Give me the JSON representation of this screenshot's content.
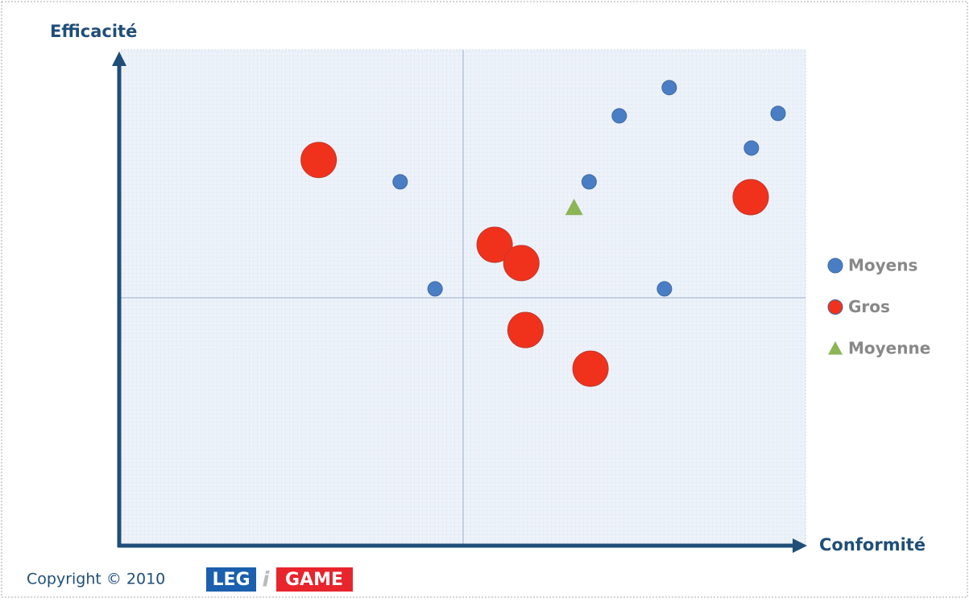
{
  "chart_data": {
    "type": "scatter",
    "x_label": "Conformité",
    "y_label": "Efficacité",
    "xlim": [
      0,
      100
    ],
    "ylim": [
      0,
      100
    ],
    "series": [
      {
        "name": "Moyens",
        "color": "#4a7ec4",
        "marker": "circle",
        "size": 9,
        "x": [
          40.8,
          45.9,
          68.4,
          72.8,
          80.1,
          96,
          92.1,
          79.4
        ],
        "values": [
          73.4,
          51.8,
          73.4,
          86.7,
          92.4,
          87.2,
          80.2,
          51.8
        ]
      },
      {
        "name": "Gros",
        "color": "#f0321c",
        "marker": "circle",
        "size": 22,
        "x": [
          28.9,
          54.6,
          58.5,
          92,
          59.1,
          68.6
        ],
        "values": [
          77.8,
          60.7,
          57,
          70.3,
          43.5,
          35.7
        ]
      },
      {
        "name": "Moyenne",
        "color": "#8cb556",
        "marker": "triangle",
        "size": 11,
        "x": [
          66.2
        ],
        "values": [
          68.2
        ]
      }
    ],
    "legend": "right"
  },
  "footer": {
    "copyright": "Copyright © 2010",
    "logo": [
      "LEG",
      "i",
      "GAME"
    ]
  }
}
